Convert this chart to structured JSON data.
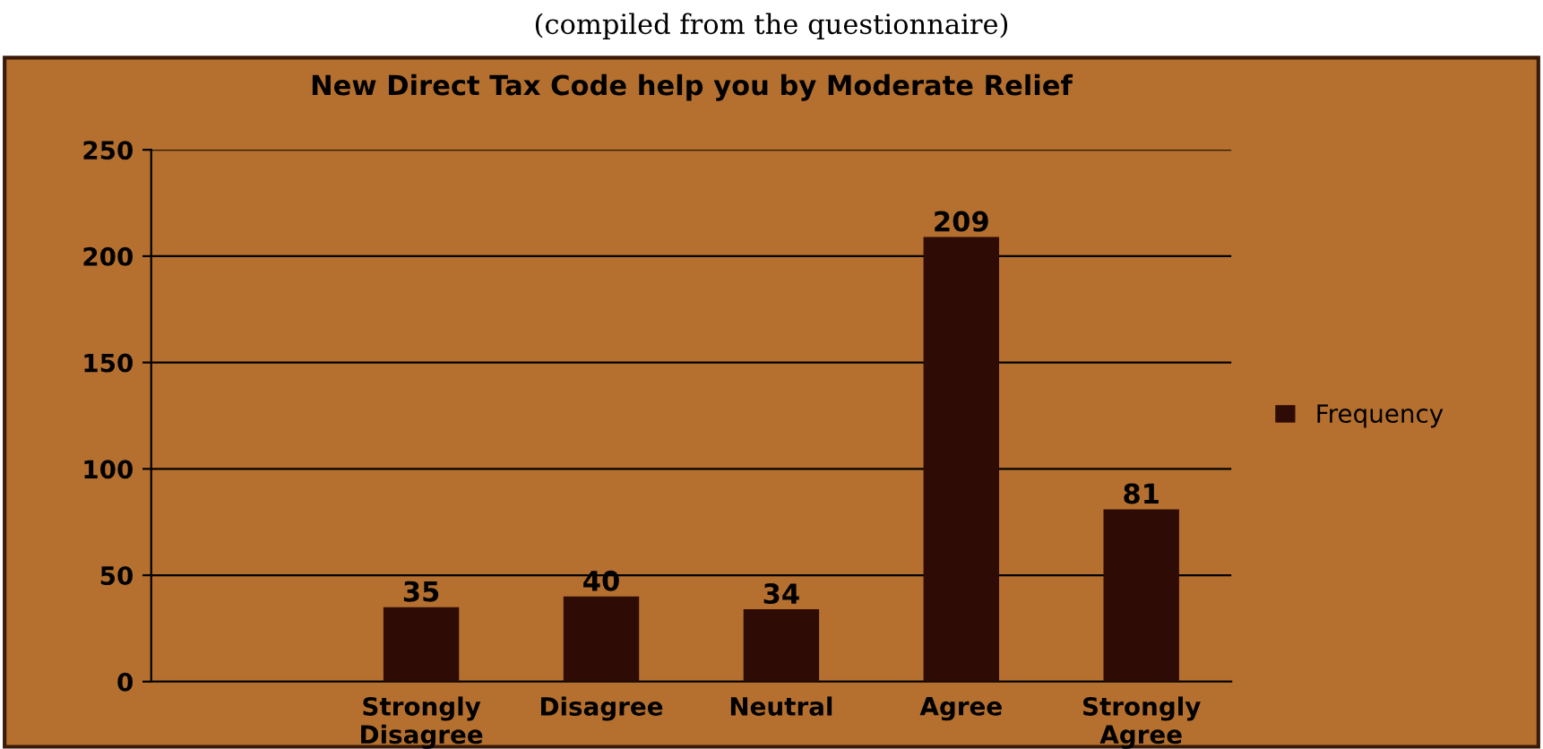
{
  "chart_data": {
    "type": "bar",
    "title": "New Direct Tax Code help you by Moderate Relief",
    "annotations": [
      "(compiled from the questionnaire)"
    ],
    "categories": [
      null,
      "Strongly\nDisagree",
      "Disagree",
      "Neutral",
      "Agree",
      "Strongly\nAgree"
    ],
    "series": [
      {
        "name": "Frequency",
        "color": "#2e0b04",
        "values": [
          null,
          35,
          40,
          34,
          209,
          81
        ]
      }
    ],
    "ylim": [
      0,
      250
    ],
    "yticks": [
      0,
      50,
      100,
      150,
      200,
      250
    ],
    "grid": "y",
    "legend": "right",
    "data_labels": true
  }
}
